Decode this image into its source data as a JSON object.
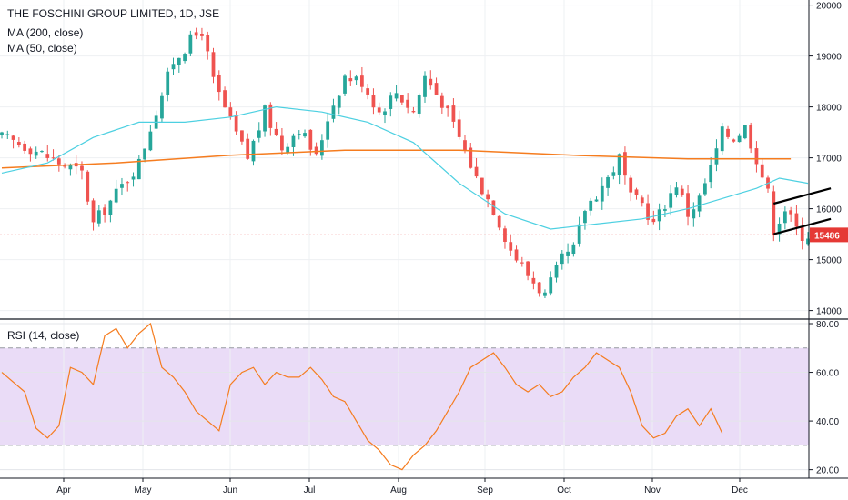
{
  "symbol": {
    "title": "THE FOSCHINI GROUP LIMITED, 1D, JSE",
    "ma200_label": "MA (200, close)",
    "ma50_label": "MA (50, close)"
  },
  "rsi_label": "RSI (14, close)",
  "last_price_label": "15486",
  "colors": {
    "up": "#26a69a",
    "down": "#ef5350",
    "ma200": "#f57c1f",
    "ma50": "#4dd0e1",
    "rsi_line": "#f57c1f",
    "rsi_band": "#eadcf7",
    "price_marker": "#e53935",
    "grid": "#eef0f3"
  },
  "chart_data": [
    {
      "type": "candlestick",
      "title": "THE FOSCHINI GROUP LIMITED, 1D, JSE",
      "y_ticks": [
        20000,
        19000,
        18000,
        17000,
        16000,
        15000,
        14000
      ],
      "ylim": [
        13850,
        20100
      ],
      "x_ticks": [
        "Apr",
        "May",
        "Jun",
        "Jul",
        "Aug",
        "Sep",
        "Oct",
        "Nov",
        "Dec"
      ],
      "last_price": 15486,
      "close_points": [
        [
          0,
          17400
        ],
        [
          5,
          17200
        ],
        [
          10,
          16900
        ],
        [
          14,
          16700
        ],
        [
          16,
          15700
        ],
        [
          20,
          16300
        ],
        [
          24,
          16900
        ],
        [
          26,
          17600
        ],
        [
          30,
          18900
        ],
        [
          33,
          19300
        ],
        [
          35,
          19500
        ],
        [
          37,
          18500
        ],
        [
          40,
          17700
        ],
        [
          43,
          17000
        ],
        [
          46,
          17900
        ],
        [
          49,
          17200
        ],
        [
          52,
          17600
        ],
        [
          55,
          17000
        ],
        [
          57,
          17800
        ],
        [
          60,
          18600
        ],
        [
          63,
          18500
        ],
        [
          66,
          17900
        ],
        [
          69,
          18300
        ],
        [
          72,
          17900
        ],
        [
          74,
          18600
        ],
        [
          77,
          18100
        ],
        [
          80,
          17400
        ],
        [
          83,
          16600
        ],
        [
          86,
          16000
        ],
        [
          89,
          15200
        ],
        [
          92,
          14700
        ],
        [
          95,
          14300
        ],
        [
          98,
          15000
        ],
        [
          100,
          15200
        ],
        [
          102,
          16000
        ],
        [
          104,
          16300
        ],
        [
          106,
          16600
        ],
        [
          108,
          17000
        ],
        [
          110,
          16200
        ],
        [
          112,
          16100
        ],
        [
          114,
          15700
        ],
        [
          116,
          16100
        ],
        [
          118,
          16500
        ],
        [
          120,
          15900
        ],
        [
          122,
          16200
        ],
        [
          124,
          16800
        ],
        [
          126,
          17500
        ],
        [
          128,
          17400
        ],
        [
          130,
          17600
        ],
        [
          132,
          17000
        ],
        [
          134,
          16300
        ],
        [
          135,
          15600
        ],
        [
          137,
          16000
        ],
        [
          139,
          15600
        ],
        [
          140,
          15486
        ]
      ],
      "wedge_upper": [
        [
          135,
          16100
        ],
        [
          145,
          16400
        ]
      ],
      "wedge_lower": [
        [
          135,
          15500
        ],
        [
          145,
          15800
        ]
      ]
    },
    {
      "type": "line",
      "name": "MA (200, close)",
      "points": [
        [
          0,
          16800
        ],
        [
          20,
          16900
        ],
        [
          40,
          17050
        ],
        [
          60,
          17150
        ],
        [
          80,
          17150
        ],
        [
          100,
          17050
        ],
        [
          120,
          16980
        ],
        [
          138,
          16980
        ]
      ]
    },
    {
      "type": "line",
      "name": "MA (50, close)",
      "points": [
        [
          0,
          16700
        ],
        [
          8,
          16900
        ],
        [
          16,
          17400
        ],
        [
          24,
          17700
        ],
        [
          32,
          17700
        ],
        [
          40,
          17800
        ],
        [
          48,
          18000
        ],
        [
          56,
          17900
        ],
        [
          64,
          17700
        ],
        [
          72,
          17300
        ],
        [
          80,
          16500
        ],
        [
          88,
          15900
        ],
        [
          96,
          15600
        ],
        [
          104,
          15700
        ],
        [
          112,
          15800
        ],
        [
          120,
          16000
        ],
        [
          126,
          16200
        ],
        [
          132,
          16400
        ],
        [
          136,
          16600
        ],
        [
          141,
          16500
        ]
      ]
    },
    {
      "type": "line",
      "title": "RSI (14, close)",
      "y_ticks": [
        80,
        60,
        40,
        20
      ],
      "ylim": [
        16.5,
        81.5
      ],
      "band": [
        30,
        70
      ],
      "points": [
        [
          0,
          60
        ],
        [
          4,
          52
        ],
        [
          6,
          37
        ],
        [
          8,
          33
        ],
        [
          10,
          38
        ],
        [
          12,
          62
        ],
        [
          14,
          60
        ],
        [
          16,
          55
        ],
        [
          18,
          75
        ],
        [
          20,
          78
        ],
        [
          22,
          70
        ],
        [
          24,
          76
        ],
        [
          26,
          80
        ],
        [
          28,
          62
        ],
        [
          30,
          58
        ],
        [
          32,
          52
        ],
        [
          34,
          44
        ],
        [
          36,
          40
        ],
        [
          38,
          36
        ],
        [
          40,
          55
        ],
        [
          42,
          60
        ],
        [
          44,
          62
        ],
        [
          46,
          55
        ],
        [
          48,
          60
        ],
        [
          50,
          58
        ],
        [
          52,
          58
        ],
        [
          54,
          62
        ],
        [
          56,
          57
        ],
        [
          58,
          50
        ],
        [
          60,
          48
        ],
        [
          62,
          40
        ],
        [
          64,
          32
        ],
        [
          66,
          28
        ],
        [
          68,
          22
        ],
        [
          70,
          20
        ],
        [
          72,
          26
        ],
        [
          74,
          30
        ],
        [
          76,
          36
        ],
        [
          78,
          44
        ],
        [
          80,
          52
        ],
        [
          82,
          62
        ],
        [
          84,
          65
        ],
        [
          86,
          68
        ],
        [
          88,
          62
        ],
        [
          90,
          55
        ],
        [
          92,
          52
        ],
        [
          94,
          55
        ],
        [
          96,
          50
        ],
        [
          98,
          52
        ],
        [
          100,
          58
        ],
        [
          102,
          62
        ],
        [
          104,
          68
        ],
        [
          106,
          65
        ],
        [
          108,
          62
        ],
        [
          110,
          52
        ],
        [
          112,
          38
        ],
        [
          114,
          33
        ],
        [
          116,
          35
        ],
        [
          118,
          42
        ],
        [
          120,
          45
        ],
        [
          122,
          38
        ],
        [
          124,
          45
        ],
        [
          126,
          35
        ]
      ],
      "dates_x_labels": [
        "Apr",
        "May",
        "Jun",
        "Jul",
        "Aug",
        "Sep",
        "Oct",
        "Nov",
        "Dec"
      ]
    }
  ]
}
